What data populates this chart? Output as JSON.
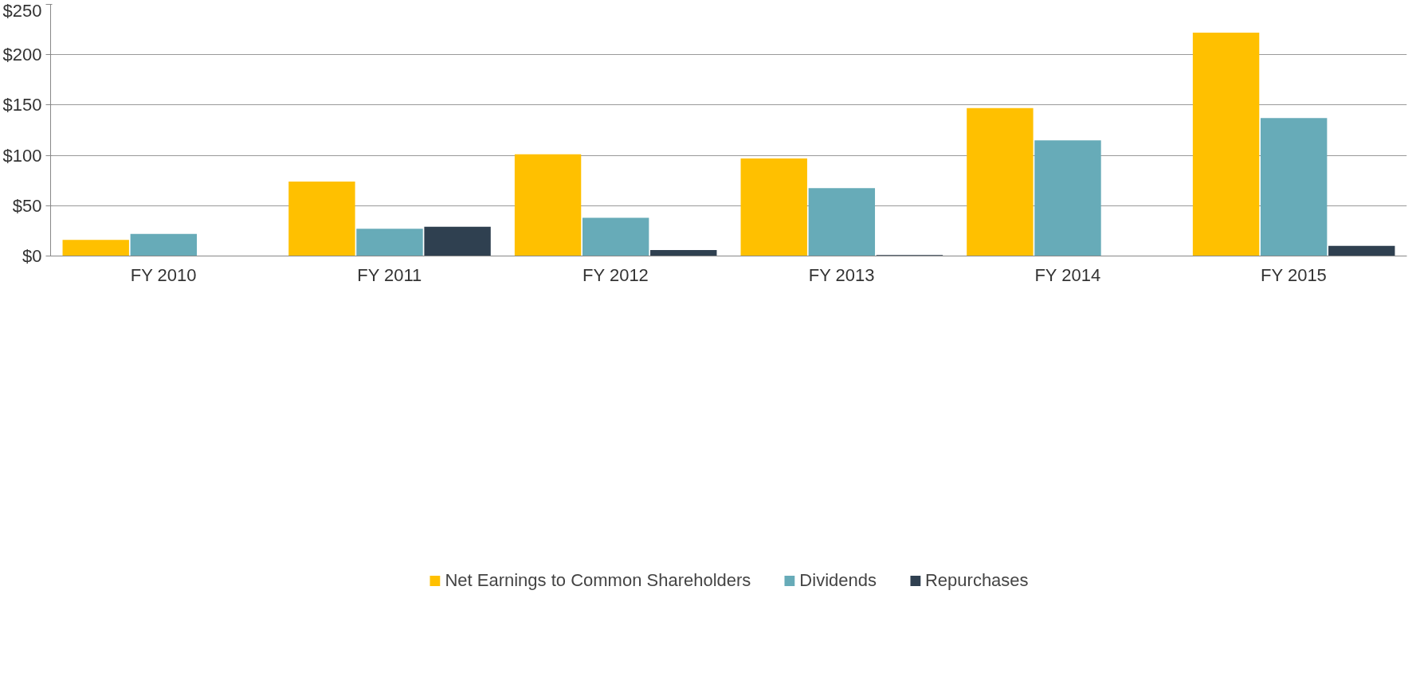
{
  "chart_data": {
    "type": "bar",
    "categories": [
      "FY 2010",
      "FY 2011",
      "FY 2012",
      "FY 2013",
      "FY 2014",
      "FY 2015"
    ],
    "series": [
      {
        "name": "Net Earnings to Common Shareholders",
        "color": "#ffc000",
        "values": [
          16,
          74,
          101,
          97,
          147,
          222
        ]
      },
      {
        "name": "Dividends",
        "color": "#67abb8",
        "values": [
          22,
          27,
          38,
          67.5,
          115,
          137
        ]
      },
      {
        "name": "Repurchases",
        "color": "#2f4050",
        "values": [
          0,
          29,
          6,
          1,
          0,
          10
        ]
      }
    ],
    "ylim": [
      0,
      250
    ],
    "yticks": [
      {
        "value": 0,
        "label": "$0"
      },
      {
        "value": 50,
        "label": "$50"
      },
      {
        "value": 100,
        "label": "$100"
      },
      {
        "value": 150,
        "label": "$150"
      },
      {
        "value": 200,
        "label": "$200"
      },
      {
        "value": 250,
        "label": "$250"
      }
    ],
    "grid": "y",
    "legend": "bottom"
  }
}
